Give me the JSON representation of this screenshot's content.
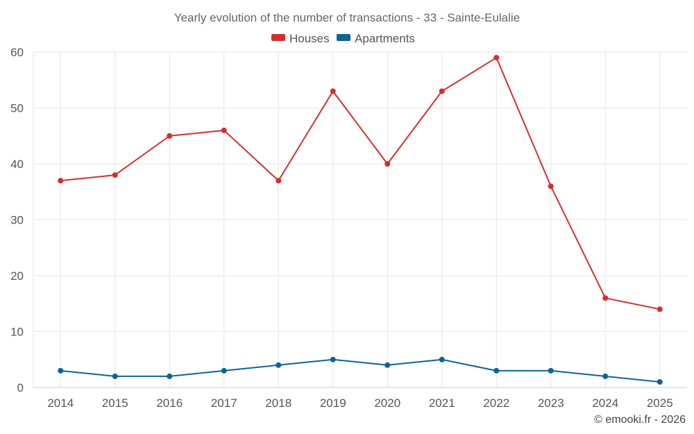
{
  "chart_data": {
    "type": "line",
    "title": "Yearly evolution of the number of transactions - 33 - Sainte-Eulalie",
    "categories": [
      "2014",
      "2015",
      "2016",
      "2017",
      "2018",
      "2019",
      "2020",
      "2021",
      "2022",
      "2023",
      "2024",
      "2025"
    ],
    "series": [
      {
        "name": "Houses",
        "color": "#d32f2f",
        "values": [
          37,
          38,
          45,
          46,
          37,
          53,
          40,
          53,
          59,
          36,
          16,
          14
        ]
      },
      {
        "name": "Apartments",
        "color": "#0b6496",
        "values": [
          3,
          2,
          2,
          3,
          4,
          5,
          4,
          5,
          3,
          3,
          2,
          1
        ]
      }
    ],
    "ylim": [
      0,
      60
    ],
    "yticks": [
      "0",
      "10",
      "20",
      "30",
      "40",
      "50",
      "60"
    ],
    "grid": true,
    "legend_position": "top-center",
    "xlabel": "",
    "ylabel": ""
  },
  "credit": "© emooki.fr - 2026"
}
